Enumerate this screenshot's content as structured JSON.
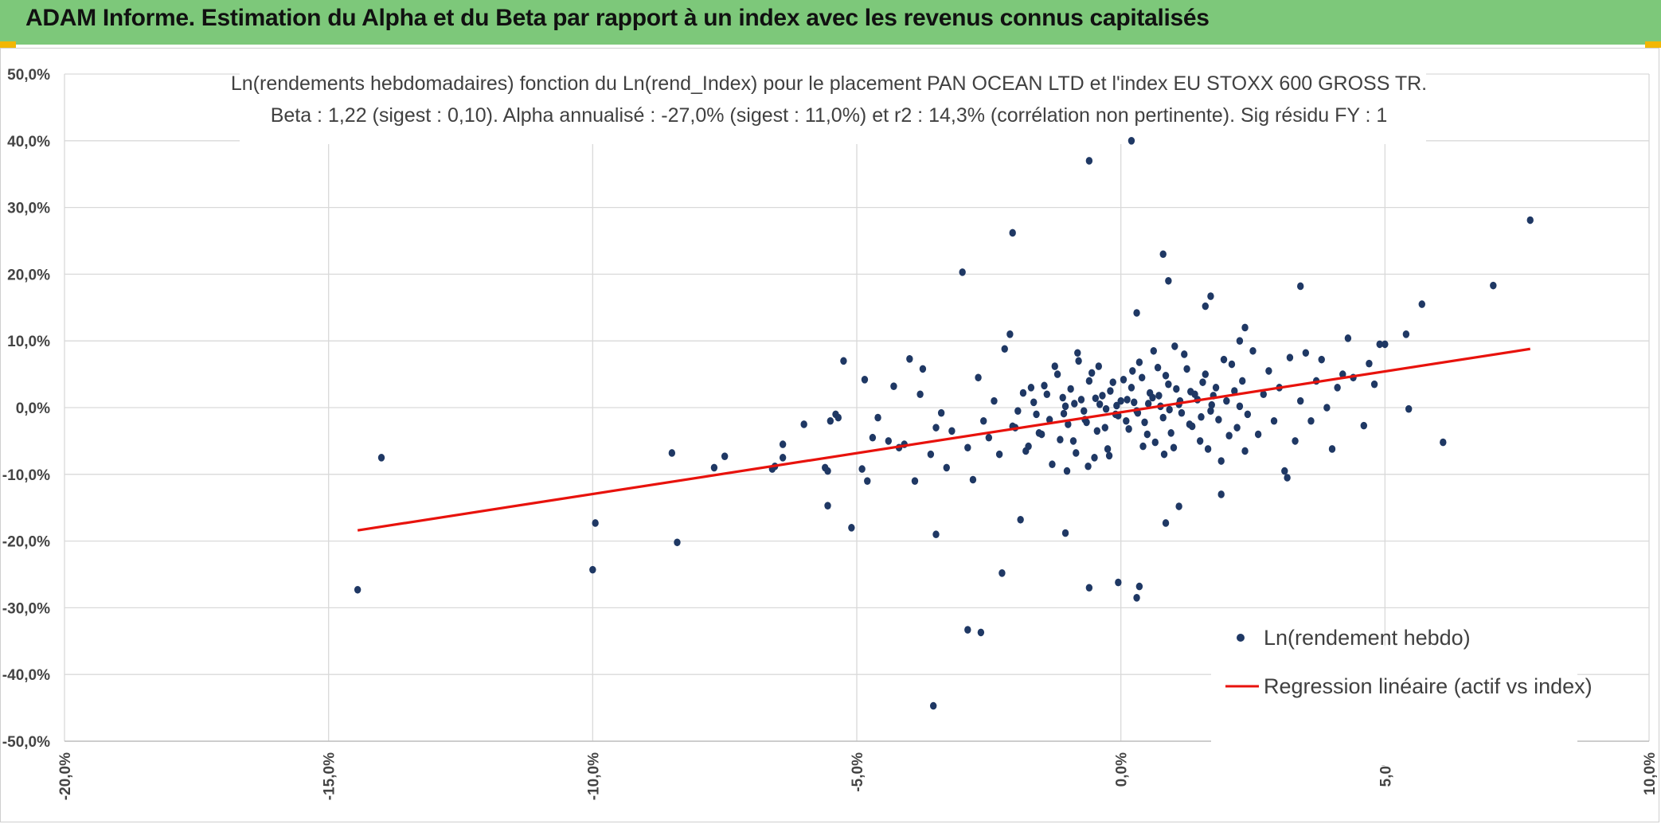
{
  "banner": {
    "title": "ADAM Informe. Estimation du Alpha et du Beta par rapport à un index avec les revenus connus capitalisés"
  },
  "colors": {
    "banner_bg": "#7dc87a",
    "point": "#1f3864",
    "regression": "#e8120c",
    "grid": "#d9d9d9"
  },
  "chart_data": {
    "type": "scatter",
    "title_lines": [
      "Ln(rendements hebdomadaires) fonction du Ln(rend_Index) pour le placement PAN OCEAN LTD et l'index EU STOXX 600 GROSS TR.",
      "Beta : 1,22 (sigest : 0,10). Alpha annualisé : -27,0% (sigest : 11,0%) et r2 : 14,3% (corrélation non pertinente). Sig résidu FY : 1"
    ],
    "xlim": [
      -0.2,
      0.1
    ],
    "ylim": [
      -0.5,
      0.5
    ],
    "x_ticks": [
      "-20,0%",
      "-15,0%",
      "-10,0%",
      "-5,0%",
      "0,0%",
      "5,0%",
      "10,0%"
    ],
    "y_ticks": [
      "50,0%",
      "40,0%",
      "30,0%",
      "20,0%",
      "10,0%",
      "0,0%",
      "-10,0%",
      "-20,0%",
      "-30,0%",
      "-40,0%",
      "-50,0%"
    ],
    "grid": true,
    "legend_position": "bottom-right",
    "series": [
      {
        "name": "Ln(rendement hebdo)",
        "kind": "scatter",
        "points": [
          [
            -0.1445,
            -0.273
          ],
          [
            -0.14,
            -0.075
          ],
          [
            -0.1,
            -0.243
          ],
          [
            -0.0995,
            -0.173
          ],
          [
            -0.085,
            -0.068
          ],
          [
            -0.084,
            -0.202
          ],
          [
            -0.077,
            -0.09
          ],
          [
            -0.075,
            -0.073
          ],
          [
            -0.066,
            -0.092
          ],
          [
            -0.0655,
            -0.088
          ],
          [
            -0.064,
            -0.055
          ],
          [
            -0.064,
            -0.075
          ],
          [
            -0.06,
            -0.025
          ],
          [
            -0.056,
            -0.09
          ],
          [
            -0.0555,
            -0.095
          ],
          [
            -0.0555,
            -0.147
          ],
          [
            -0.055,
            -0.02
          ],
          [
            -0.054,
            -0.01
          ],
          [
            -0.0535,
            -0.015
          ],
          [
            -0.0525,
            0.07
          ],
          [
            -0.051,
            -0.18
          ],
          [
            -0.049,
            -0.092
          ],
          [
            -0.0485,
            0.042
          ],
          [
            -0.048,
            -0.11
          ],
          [
            -0.047,
            -0.045
          ],
          [
            -0.046,
            -0.015
          ],
          [
            -0.044,
            -0.05
          ],
          [
            -0.043,
            0.032
          ],
          [
            -0.042,
            -0.06
          ],
          [
            -0.041,
            -0.055
          ],
          [
            -0.04,
            0.073
          ],
          [
            -0.039,
            -0.11
          ],
          [
            -0.038,
            0.02
          ],
          [
            -0.0375,
            0.058
          ],
          [
            -0.036,
            -0.07
          ],
          [
            -0.035,
            -0.03
          ],
          [
            -0.034,
            -0.008
          ],
          [
            -0.033,
            -0.09
          ],
          [
            -0.032,
            -0.035
          ],
          [
            -0.03,
            0.203
          ],
          [
            -0.029,
            -0.06
          ],
          [
            -0.028,
            -0.108
          ],
          [
            -0.027,
            0.045
          ],
          [
            -0.026,
            -0.02
          ],
          [
            -0.025,
            -0.045
          ],
          [
            -0.024,
            0.01
          ],
          [
            -0.023,
            -0.07
          ],
          [
            -0.022,
            0.088
          ],
          [
            -0.021,
            0.11
          ],
          [
            -0.02,
            -0.03
          ],
          [
            -0.019,
            -0.168
          ],
          [
            -0.018,
            -0.065
          ],
          [
            -0.017,
            0.03
          ],
          [
            -0.016,
            -0.01
          ],
          [
            -0.015,
            -0.04
          ],
          [
            -0.014,
            0.02
          ],
          [
            -0.013,
            -0.085
          ],
          [
            -0.012,
            0.05
          ],
          [
            -0.011,
            0.015
          ],
          [
            -0.01,
            -0.025
          ],
          [
            -0.009,
            -0.05
          ],
          [
            -0.008,
            0.07
          ],
          [
            -0.007,
            -0.005
          ],
          [
            -0.006,
            0.04
          ],
          [
            -0.005,
            -0.075
          ],
          [
            -0.004,
            0.005
          ],
          [
            -0.003,
            -0.03
          ],
          [
            -0.002,
            0.025
          ],
          [
            -0.001,
            -0.01
          ],
          [
            0.0,
            0.01
          ],
          [
            0.001,
            -0.02
          ],
          [
            0.002,
            0.03
          ],
          [
            0.003,
            -0.005
          ],
          [
            0.004,
            0.045
          ],
          [
            0.005,
            -0.04
          ],
          [
            0.006,
            0.015
          ],
          [
            0.007,
            0.06
          ],
          [
            0.008,
            -0.015
          ],
          [
            0.009,
            0.035
          ],
          [
            0.01,
            -0.06
          ],
          [
            0.011,
            0.005
          ],
          [
            0.012,
            0.08
          ],
          [
            0.013,
            -0.025
          ],
          [
            0.014,
            0.02
          ],
          [
            0.015,
            -0.05
          ],
          [
            0.016,
            0.05
          ],
          [
            0.017,
            -0.005
          ],
          [
            0.018,
            0.03
          ],
          [
            0.019,
            -0.08
          ],
          [
            0.02,
            0.01
          ],
          [
            0.021,
            0.065
          ],
          [
            0.022,
            -0.03
          ],
          [
            0.023,
            0.04
          ],
          [
            0.024,
            -0.01
          ],
          [
            0.025,
            0.085
          ],
          [
            0.026,
            -0.04
          ],
          [
            0.027,
            0.02
          ],
          [
            0.028,
            0.055
          ],
          [
            0.029,
            -0.02
          ],
          [
            0.03,
            0.03
          ],
          [
            -0.0205,
            -0.028
          ],
          [
            -0.0195,
            -0.005
          ],
          [
            -0.0185,
            0.022
          ],
          [
            -0.0175,
            -0.058
          ],
          [
            -0.0165,
            0.008
          ],
          [
            -0.0155,
            -0.038
          ],
          [
            -0.0145,
            0.033
          ],
          [
            -0.0135,
            -0.018
          ],
          [
            -0.0125,
            0.062
          ],
          [
            -0.0115,
            -0.048
          ],
          [
            -0.0105,
            0.002
          ],
          [
            -0.0095,
            0.028
          ],
          [
            -0.0085,
            -0.068
          ],
          [
            -0.0075,
            0.012
          ],
          [
            -0.0065,
            -0.022
          ],
          [
            -0.0055,
            0.052
          ],
          [
            -0.0045,
            -0.035
          ],
          [
            -0.0035,
            0.018
          ],
          [
            -0.0025,
            -0.062
          ],
          [
            -0.0015,
            0.038
          ],
          [
            -0.0005,
            -0.012
          ],
          [
            0.0005,
            0.042
          ],
          [
            0.0015,
            -0.032
          ],
          [
            0.0025,
            0.008
          ],
          [
            0.0035,
            0.068
          ],
          [
            0.0045,
            -0.022
          ],
          [
            0.0055,
            0.022
          ],
          [
            0.0065,
            -0.052
          ],
          [
            0.0075,
            0.002
          ],
          [
            0.0085,
            0.048
          ],
          [
            0.0095,
            -0.038
          ],
          [
            0.0105,
            0.028
          ],
          [
            0.0115,
            -0.008
          ],
          [
            0.0125,
            0.058
          ],
          [
            0.0135,
            -0.028
          ],
          [
            0.0145,
            0.012
          ],
          [
            0.0155,
            0.038
          ],
          [
            0.0165,
            -0.062
          ],
          [
            0.0175,
            0.018
          ],
          [
            0.0185,
            -0.018
          ],
          [
            0.0195,
            0.072
          ],
          [
            0.0205,
            -0.042
          ],
          [
            0.0215,
            0.025
          ],
          [
            0.0225,
            0.002
          ],
          [
            0.0235,
            -0.065
          ],
          [
            -0.0008,
            0.003
          ],
          [
            0.0012,
            0.012
          ],
          [
            0.0032,
            -0.008
          ],
          [
            0.0052,
            0.006
          ],
          [
            0.0072,
            0.018
          ],
          [
            0.0092,
            -0.003
          ],
          [
            0.0112,
            0.01
          ],
          [
            0.0132,
            0.024
          ],
          [
            0.0152,
            -0.014
          ],
          [
            0.0172,
            0.004
          ],
          [
            -0.0028,
            -0.002
          ],
          [
            -0.0048,
            0.014
          ],
          [
            -0.0068,
            -0.018
          ],
          [
            -0.0088,
            0.006
          ],
          [
            -0.0108,
            -0.009
          ],
          [
            0.0022,
            0.055
          ],
          [
            0.0042,
            -0.058
          ],
          [
            0.0062,
            0.085
          ],
          [
            0.0082,
            -0.07
          ],
          [
            0.0102,
            0.092
          ],
          [
            -0.0022,
            -0.072
          ],
          [
            -0.0042,
            0.062
          ],
          [
            -0.0062,
            -0.088
          ],
          [
            -0.0082,
            0.082
          ],
          [
            -0.0102,
            -0.095
          ],
          [
            0.031,
            -0.095
          ],
          [
            0.0315,
            -0.105
          ],
          [
            0.032,
            0.075
          ],
          [
            0.033,
            -0.05
          ],
          [
            0.034,
            0.01
          ],
          [
            0.035,
            0.082
          ],
          [
            0.036,
            -0.02
          ],
          [
            0.037,
            0.04
          ],
          [
            0.038,
            0.072
          ],
          [
            0.039,
            0.0
          ],
          [
            0.04,
            -0.062
          ],
          [
            0.041,
            0.03
          ],
          [
            0.042,
            0.05
          ],
          [
            0.043,
            0.104
          ],
          [
            0.044,
            0.045
          ],
          [
            0.046,
            -0.027
          ],
          [
            0.047,
            0.066
          ],
          [
            0.048,
            0.035
          ],
          [
            0.049,
            0.095
          ],
          [
            0.05,
            0.095
          ],
          [
            0.054,
            0.11
          ],
          [
            0.0545,
            -0.002
          ],
          [
            0.057,
            0.155
          ],
          [
            0.061,
            -0.052
          ],
          [
            0.0705,
            0.183
          ],
          [
            0.0775,
            0.281
          ],
          [
            0.034,
            0.182
          ],
          [
            0.017,
            0.167
          ],
          [
            0.016,
            0.152
          ],
          [
            0.009,
            0.19
          ],
          [
            0.008,
            0.23
          ],
          [
            0.003,
            0.142
          ],
          [
            0.002,
            0.4
          ],
          [
            -0.006,
            0.37
          ],
          [
            -0.0205,
            0.262
          ],
          [
            -0.0225,
            -0.248
          ],
          [
            -0.0265,
            -0.337
          ],
          [
            -0.029,
            -0.333
          ],
          [
            -0.0355,
            -0.447
          ],
          [
            -0.035,
            -0.19
          ],
          [
            -0.006,
            -0.27
          ],
          [
            -0.0005,
            -0.262
          ],
          [
            0.0035,
            -0.268
          ],
          [
            0.003,
            -0.285
          ],
          [
            0.0085,
            -0.173
          ],
          [
            0.011,
            -0.148
          ],
          [
            -0.0105,
            -0.188
          ],
          [
            0.019,
            -0.13
          ],
          [
            0.0225,
            0.1
          ],
          [
            0.0235,
            0.12
          ]
        ]
      },
      {
        "name": "Regression linéaire (actif vs index)",
        "kind": "line",
        "points": [
          [
            -0.1445,
            -0.184
          ],
          [
            0.0775,
            0.088
          ]
        ]
      }
    ]
  }
}
